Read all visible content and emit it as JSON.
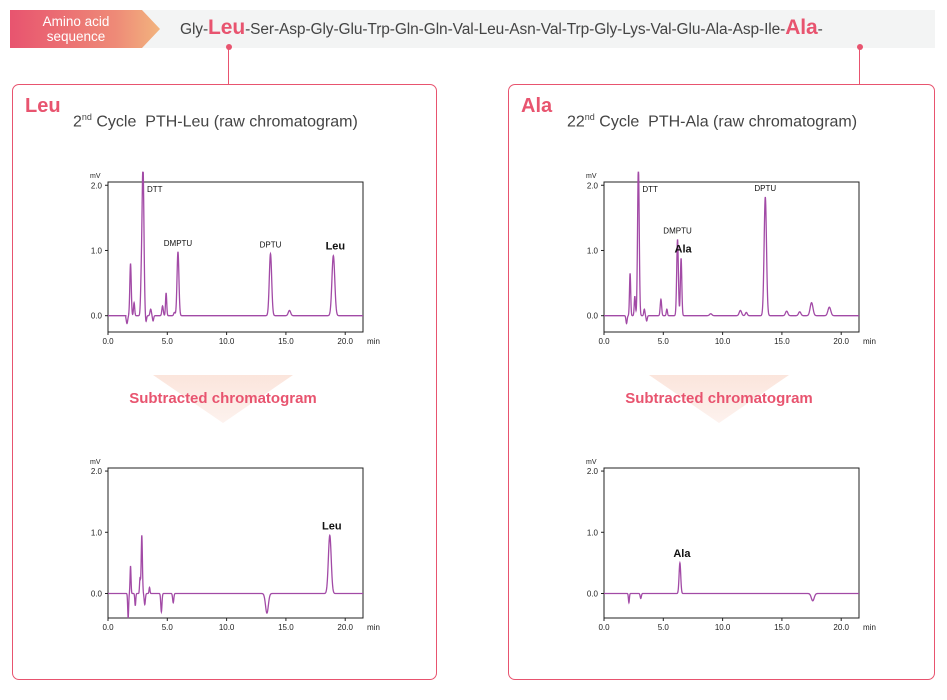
{
  "banner": {
    "tag_line1": "Amino acid",
    "tag_line2": "sequence",
    "residues": [
      "Gly",
      "Leu",
      "Ser",
      "Asp",
      "Gly",
      "Glu",
      "Trp",
      "Gln",
      "Gln",
      "Val",
      "Leu",
      "Asn",
      "Val",
      "Trp",
      "Gly",
      "Lys",
      "Val",
      "Glu",
      "Ala",
      "Asp",
      "Ile",
      "Ala"
    ],
    "highlight_indices": [
      1,
      21
    ]
  },
  "panels": [
    {
      "id": "leu",
      "title": "Leu",
      "cycle_num": "2",
      "cycle_suffix": "nd",
      "cycle_rest": " Cycle  PTH-Leu (raw chromatogram)",
      "subtracted_label": "Subtracted chromatogram"
    },
    {
      "id": "ala",
      "title": "Ala",
      "cycle_num": "22",
      "cycle_suffix": "nd",
      "cycle_rest": " Cycle  PTH-Ala (raw chromatogram)",
      "subtracted_label": "Subtracted chromatogram"
    }
  ],
  "colors": {
    "accent": "#e8546f",
    "trace": "#a24aa6",
    "banner_bg": "#f3f4f4"
  },
  "chart_data": [
    {
      "type": "line",
      "panel": "Leu",
      "ylabel": "mV",
      "xlabel": "min",
      "xlim": [
        0,
        21.5
      ],
      "ylim": [
        -0.25,
        2.05
      ],
      "xticks": [
        "0.0",
        "5.0",
        "10.0",
        "15.0",
        "20.0"
      ],
      "yticks": [
        "0.0",
        "1.0",
        "2.0"
      ],
      "baseline": 0,
      "peaks": [
        {
          "x": 1.9,
          "y": 0.8,
          "w": 0.06
        },
        {
          "x": 2.2,
          "y": 0.2,
          "w": 0.05
        },
        {
          "x": 2.8,
          "y": 0.4,
          "w": 0.06
        },
        {
          "x": 2.95,
          "y": 2.3,
          "w": 0.08,
          "label": "DTT"
        },
        {
          "x": 3.6,
          "y": 0.1,
          "w": 0.06
        },
        {
          "x": 4.6,
          "y": 0.15,
          "w": 0.06
        },
        {
          "x": 4.9,
          "y": 0.35,
          "w": 0.05
        },
        {
          "x": 5.6,
          "y": 0.05,
          "w": 0.06
        },
        {
          "x": 5.9,
          "y": 0.98,
          "w": 0.08,
          "label": "DMPTU"
        },
        {
          "x": 13.7,
          "y": 0.95,
          "w": 0.1,
          "label": "DPTU"
        },
        {
          "x": 15.3,
          "y": 0.08,
          "w": 0.1
        },
        {
          "x": 19.0,
          "y": 0.92,
          "w": 0.12,
          "label": "Leu",
          "bold": true
        }
      ],
      "dips": [
        {
          "x": 1.6,
          "y": -0.12,
          "w": 0.06
        },
        {
          "x": 3.2,
          "y": -0.1,
          "w": 0.05
        },
        {
          "x": 3.8,
          "y": -0.08,
          "w": 0.05
        }
      ]
    },
    {
      "type": "line",
      "panel": "Leu",
      "ylabel": "mV",
      "xlabel": "min",
      "xlim": [
        0,
        21.5
      ],
      "ylim": [
        -0.4,
        2.05
      ],
      "xticks": [
        "0.0",
        "5.0",
        "10.0",
        "15.0",
        "20.0"
      ],
      "yticks": [
        "0.0",
        "1.0",
        "2.0"
      ],
      "baseline": 0,
      "peaks": [
        {
          "x": 1.9,
          "y": 0.45,
          "w": 0.04
        },
        {
          "x": 2.7,
          "y": 0.25,
          "w": 0.04
        },
        {
          "x": 2.85,
          "y": 0.95,
          "w": 0.05
        },
        {
          "x": 3.5,
          "y": 0.1,
          "w": 0.04
        },
        {
          "x": 18.7,
          "y": 0.95,
          "w": 0.12,
          "label": "Leu",
          "bold": true
        }
      ],
      "dips": [
        {
          "x": 1.7,
          "y": -0.4,
          "w": 0.04
        },
        {
          "x": 2.3,
          "y": -0.2,
          "w": 0.04
        },
        {
          "x": 3.1,
          "y": -0.18,
          "w": 0.05
        },
        {
          "x": 4.5,
          "y": -0.3,
          "w": 0.05
        },
        {
          "x": 5.5,
          "y": -0.15,
          "w": 0.05
        },
        {
          "x": 13.4,
          "y": -0.32,
          "w": 0.12
        }
      ]
    },
    {
      "type": "line",
      "panel": "Ala",
      "ylabel": "mV",
      "xlabel": "min",
      "xlim": [
        0,
        21.5
      ],
      "ylim": [
        -0.25,
        2.05
      ],
      "xticks": [
        "0.0",
        "5.0",
        "10.0",
        "15.0",
        "20.0"
      ],
      "yticks": [
        "0.0",
        "1.0",
        "2.0"
      ],
      "baseline": 0,
      "peaks": [
        {
          "x": 2.2,
          "y": 0.65,
          "w": 0.05
        },
        {
          "x": 2.6,
          "y": 0.3,
          "w": 0.05
        },
        {
          "x": 2.9,
          "y": 2.3,
          "w": 0.07,
          "label": "DTT"
        },
        {
          "x": 3.4,
          "y": 0.1,
          "w": 0.05
        },
        {
          "x": 4.8,
          "y": 0.25,
          "w": 0.06
        },
        {
          "x": 5.3,
          "y": 0.1,
          "w": 0.05
        },
        {
          "x": 6.2,
          "y": 1.17,
          "w": 0.07,
          "label": "DMPTU"
        },
        {
          "x": 6.5,
          "y": 0.88,
          "w": 0.06,
          "label": "Ala",
          "bold": true
        },
        {
          "x": 9.0,
          "y": 0.03,
          "w": 0.1
        },
        {
          "x": 11.5,
          "y": 0.08,
          "w": 0.1
        },
        {
          "x": 12.0,
          "y": 0.05,
          "w": 0.08
        },
        {
          "x": 13.6,
          "y": 1.82,
          "w": 0.1,
          "label": "DPTU"
        },
        {
          "x": 15.4,
          "y": 0.07,
          "w": 0.1
        },
        {
          "x": 16.5,
          "y": 0.06,
          "w": 0.1
        },
        {
          "x": 17.5,
          "y": 0.2,
          "w": 0.12
        },
        {
          "x": 19.0,
          "y": 0.13,
          "w": 0.12
        }
      ],
      "dips": [
        {
          "x": 1.9,
          "y": -0.12,
          "w": 0.05
        },
        {
          "x": 3.6,
          "y": -0.08,
          "w": 0.05
        }
      ]
    },
    {
      "type": "line",
      "panel": "Ala",
      "ylabel": "mV",
      "xlabel": "min",
      "xlim": [
        0,
        21.5
      ],
      "ylim": [
        -0.4,
        2.05
      ],
      "xticks": [
        "0.0",
        "5.0",
        "10.0",
        "15.0",
        "20.0"
      ],
      "yticks": [
        "0.0",
        "1.0",
        "2.0"
      ],
      "baseline": 0,
      "peaks": [
        {
          "x": 6.4,
          "y": 0.5,
          "w": 0.07,
          "label": "Ala",
          "bold": true
        }
      ],
      "dips": [
        {
          "x": 2.1,
          "y": -0.15,
          "w": 0.04
        },
        {
          "x": 3.1,
          "y": -0.08,
          "w": 0.05
        },
        {
          "x": 17.6,
          "y": -0.12,
          "w": 0.12
        }
      ]
    }
  ]
}
